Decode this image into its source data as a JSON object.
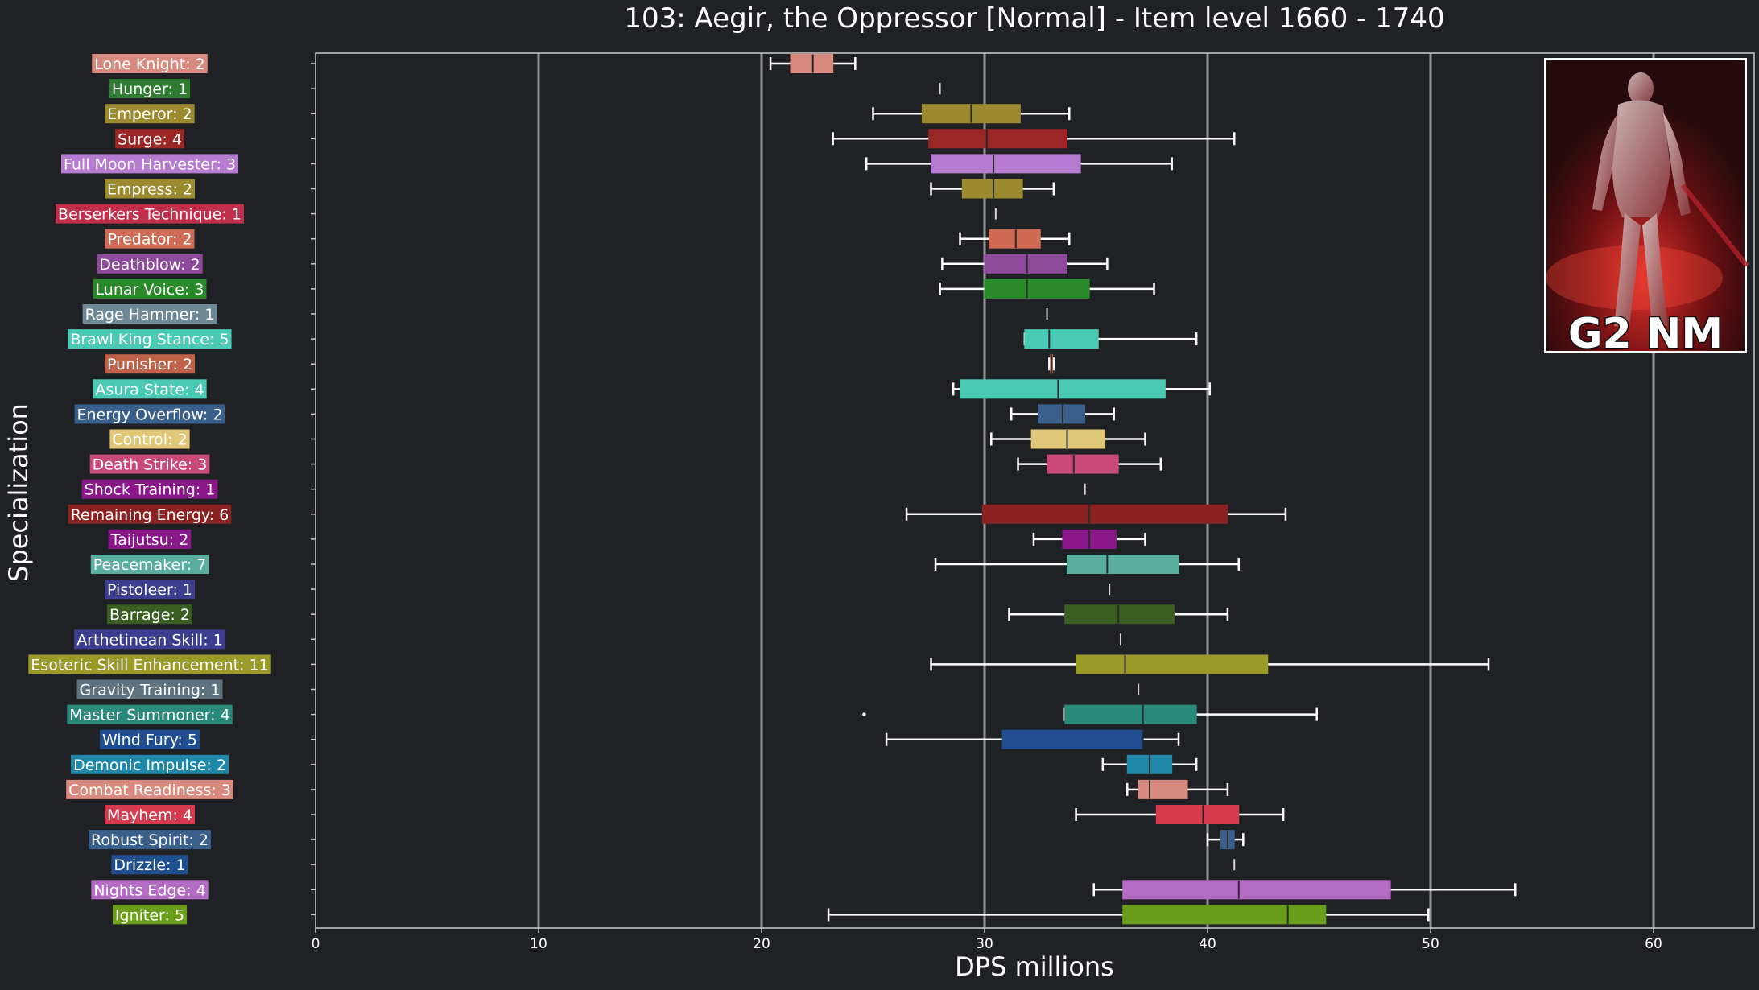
{
  "chart_data": {
    "type": "boxplot",
    "title": "103: Aegir, the Oppressor [Normal] - Item level 1660 - 1740",
    "xlabel": "DPS millions",
    "ylabel": "Specialization",
    "xlim": [
      0,
      64.5
    ],
    "xticks": [
      0,
      10,
      20,
      30,
      40,
      50,
      60
    ],
    "grid": "vertical",
    "badge": "G2 NM",
    "categories": [
      {
        "label": "Lone Knight: 2",
        "color": "#d98a7e",
        "min": 20.4,
        "q1": 21.3,
        "median": 22.3,
        "q3": 23.2,
        "max": 24.2
      },
      {
        "label": "Hunger: 1",
        "color": "#2e7d32",
        "min": 28.0,
        "q1": 28.0,
        "median": 28.0,
        "q3": 28.0,
        "max": 28.0
      },
      {
        "label": "Emperor: 2",
        "color": "#9c8a2e",
        "min": 25.0,
        "q1": 27.2,
        "median": 29.4,
        "q3": 31.6,
        "max": 33.8
      },
      {
        "label": "Surge: 4",
        "color": "#9b2626",
        "min": 23.2,
        "q1": 27.5,
        "median": 30.1,
        "q3": 33.7,
        "max": 41.2
      },
      {
        "label": "Full Moon Harvester: 3",
        "color": "#b77ad1",
        "min": 24.7,
        "q1": 27.6,
        "median": 30.4,
        "q3": 34.3,
        "max": 38.4
      },
      {
        "label": "Empress: 2",
        "color": "#9c8a2e",
        "min": 27.6,
        "q1": 29.0,
        "median": 30.4,
        "q3": 31.7,
        "max": 33.1
      },
      {
        "label": "Berserkers Technique: 1",
        "color": "#c0304a",
        "min": 30.5,
        "q1": 30.5,
        "median": 30.5,
        "q3": 30.5,
        "max": 30.5
      },
      {
        "label": "Predator: 2",
        "color": "#cf6b55",
        "min": 28.9,
        "q1": 30.2,
        "median": 31.4,
        "q3": 32.5,
        "max": 33.8
      },
      {
        "label": "Deathblow: 2",
        "color": "#8e4a9a",
        "min": 28.1,
        "q1": 30.0,
        "median": 31.9,
        "q3": 33.7,
        "max": 35.5
      },
      {
        "label": "Lunar Voice: 3",
        "color": "#2a8a2a",
        "min": 28.0,
        "q1": 30.0,
        "median": 31.9,
        "q3": 34.7,
        "max": 37.6
      },
      {
        "label": "Rage Hammer: 1",
        "color": "#6e8896",
        "min": 32.8,
        "q1": 32.8,
        "median": 32.8,
        "q3": 32.8,
        "max": 32.8
      },
      {
        "label": "Brawl King Stance: 5",
        "color": "#4cc9b4",
        "min": 31.8,
        "q1": 31.8,
        "median": 32.9,
        "q3": 35.1,
        "max": 39.5
      },
      {
        "label": "Punisher: 2",
        "color": "#c0624a",
        "min": 32.9,
        "q1": 32.95,
        "median": 33.0,
        "q3": 33.05,
        "max": 33.1
      },
      {
        "label": "Asura State: 4",
        "color": "#4cc9b4",
        "min": 28.6,
        "q1": 28.9,
        "median": 33.3,
        "q3": 38.1,
        "max": 40.1
      },
      {
        "label": "Energy Overflow: 2",
        "color": "#3a5f8a",
        "min": 31.2,
        "q1": 32.4,
        "median": 33.5,
        "q3": 34.5,
        "max": 35.8
      },
      {
        "label": "Control: 2",
        "color": "#e0c878",
        "min": 30.3,
        "q1": 32.1,
        "median": 33.7,
        "q3": 35.4,
        "max": 37.2
      },
      {
        "label": "Death Strike: 3",
        "color": "#c94a78",
        "min": 31.5,
        "q1": 32.8,
        "median": 34.0,
        "q3": 36.0,
        "max": 37.9
      },
      {
        "label": "Shock Training: 1",
        "color": "#8a178a",
        "min": 34.5,
        "q1": 34.5,
        "median": 34.5,
        "q3": 34.5,
        "max": 34.5
      },
      {
        "label": "Remaining Energy: 6",
        "color": "#8b2222",
        "min": 26.5,
        "q1": 29.9,
        "median": 34.7,
        "q3": 40.9,
        "max": 43.5
      },
      {
        "label": "Taijutsu: 2",
        "color": "#8a178a",
        "min": 32.2,
        "q1": 33.5,
        "median": 34.7,
        "q3": 35.9,
        "max": 37.2
      },
      {
        "label": "Peacemaker: 7",
        "color": "#5aae9e",
        "min": 27.8,
        "q1": 33.7,
        "median": 35.5,
        "q3": 38.7,
        "max": 41.4
      },
      {
        "label": "Pistoleer: 1",
        "color": "#3e3e90",
        "min": 35.6,
        "q1": 35.6,
        "median": 35.6,
        "q3": 35.6,
        "max": 35.6
      },
      {
        "label": "Barrage: 2",
        "color": "#3a5e22",
        "min": 31.1,
        "q1": 33.6,
        "median": 36.0,
        "q3": 38.5,
        "max": 40.9
      },
      {
        "label": "Arthetinean Skill: 1",
        "color": "#3e3e90",
        "min": 36.1,
        "q1": 36.1,
        "median": 36.1,
        "q3": 36.1,
        "max": 36.1
      },
      {
        "label": "Esoteric Skill Enhancement: 11",
        "color": "#9a9a28",
        "min": 27.6,
        "q1": 34.1,
        "median": 36.3,
        "q3": 42.7,
        "max": 52.6
      },
      {
        "label": "Gravity Training: 1",
        "color": "#5e7280",
        "min": 36.9,
        "q1": 36.9,
        "median": 36.9,
        "q3": 36.9,
        "max": 36.9
      },
      {
        "label": "Master Summoner: 4",
        "color": "#2a8a7a",
        "min": 33.6,
        "q1": 33.6,
        "median": 37.1,
        "q3": 39.5,
        "max": 44.9,
        "outliers": [
          24.6
        ]
      },
      {
        "label": "Wind Fury: 5",
        "color": "#1f4f90",
        "min": 25.6,
        "q1": 30.8,
        "median": 37.1,
        "q3": 37.1,
        "max": 38.7
      },
      {
        "label": "Demonic Impulse: 2",
        "color": "#1f88a8",
        "min": 35.3,
        "q1": 36.4,
        "median": 37.4,
        "q3": 38.4,
        "max": 39.5
      },
      {
        "label": "Combat Readiness: 3",
        "color": "#d98a7e",
        "min": 36.4,
        "q1": 36.9,
        "median": 37.4,
        "q3": 39.1,
        "max": 40.9
      },
      {
        "label": "Mayhem: 4",
        "color": "#d63a4e",
        "min": 34.1,
        "q1": 37.7,
        "median": 39.8,
        "q3": 41.4,
        "max": 43.4
      },
      {
        "label": "Robust Spirit: 2",
        "color": "#3a5f8a",
        "min": 40.0,
        "q1": 40.6,
        "median": 40.9,
        "q3": 41.2,
        "max": 41.6
      },
      {
        "label": "Drizzle: 1",
        "color": "#1f4f90",
        "min": 41.2,
        "q1": 41.2,
        "median": 41.2,
        "q3": 41.2,
        "max": 41.2
      },
      {
        "label": "Nights Edge: 4",
        "color": "#b46cc4",
        "min": 34.9,
        "q1": 36.2,
        "median": 41.4,
        "q3": 48.2,
        "max": 53.8
      },
      {
        "label": "Igniter: 5",
        "color": "#6a9e1a",
        "min": 23.0,
        "q1": 36.2,
        "median": 43.6,
        "q3": 45.3,
        "max": 49.9
      }
    ]
  }
}
